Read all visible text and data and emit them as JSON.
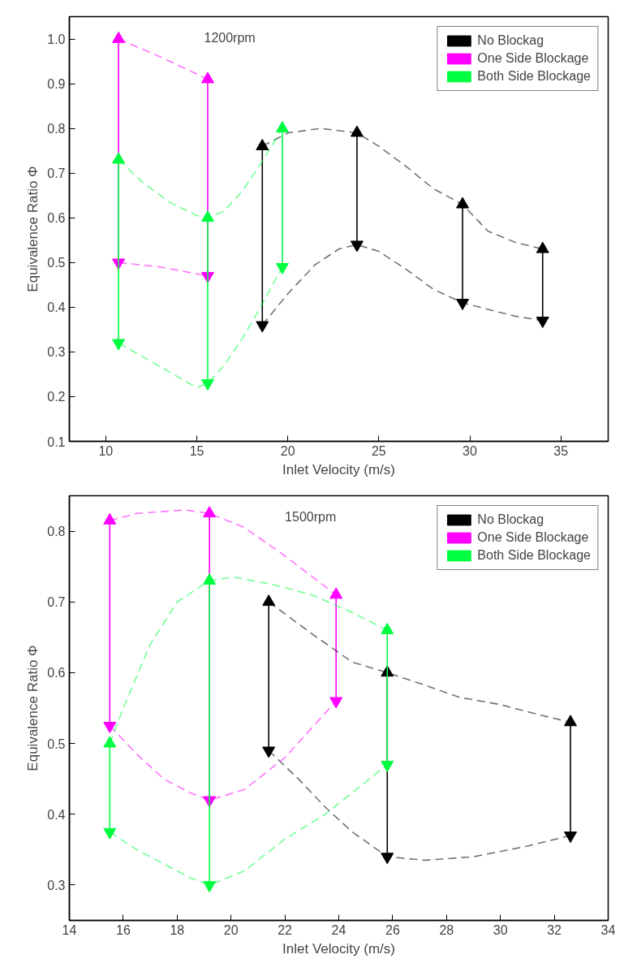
{
  "chart_data": [
    {
      "type": "line",
      "annotations": [
        "1200rpm"
      ],
      "xlabel": "Inlet Velocity (m/s)",
      "ylabel": "Equivalence Ratio Φ",
      "xlim": [
        8,
        37.6
      ],
      "ylim": [
        0.1,
        1.05
      ],
      "xticks": [
        10,
        15,
        20,
        25,
        30,
        35
      ],
      "yticks": [
        0.1,
        0.2,
        0.3,
        0.4,
        0.5,
        0.6,
        0.7,
        0.8,
        0.9,
        {
          "value": 1.0,
          "label": "1.0"
        }
      ],
      "legend": "top right",
      "grid": false,
      "marker": "none",
      "line_style": "dashed",
      "series": [
        {
          "color": "#000000",
          "x": [
            18.6,
            18.6
          ],
          "values": [
            0.36,
            0.76
          ],
          "marker": "triangle",
          "line_style": "solid"
        },
        {
          "color": "#000000",
          "x": [
            23.8,
            23.8
          ],
          "values": [
            0.54,
            0.79
          ],
          "marker": "triangle",
          "line_style": "solid"
        },
        {
          "color": "#000000",
          "x": [
            29.6,
            29.6
          ],
          "values": [
            0.41,
            0.63
          ],
          "marker": "triangle",
          "line_style": "solid"
        },
        {
          "color": "#000000",
          "x": [
            34.0,
            34.0
          ],
          "values": [
            0.37,
            0.53
          ],
          "marker": "triangle",
          "line_style": "solid"
        },
        {
          "color": "#ff00ff",
          "x": [
            10.7,
            10.7
          ],
          "values": [
            0.5,
            1.0
          ],
          "marker": "triangle",
          "line_style": "solid"
        },
        {
          "color": "#ff00ff",
          "x": [
            15.6,
            15.6
          ],
          "values": [
            0.47,
            0.91
          ],
          "marker": "triangle",
          "line_style": "solid"
        },
        {
          "color": "#00ff40",
          "x": [
            10.7,
            10.7
          ],
          "values": [
            0.32,
            0.73
          ],
          "marker": "triangle",
          "line_style": "solid"
        },
        {
          "color": "#00ff40",
          "x": [
            15.6,
            15.6
          ],
          "values": [
            0.23,
            0.6
          ],
          "marker": "triangle",
          "line_style": "solid"
        },
        {
          "color": "#00ff40",
          "x": [
            19.7,
            19.7
          ],
          "values": [
            0.49,
            0.8
          ],
          "marker": "triangle",
          "line_style": "solid"
        },
        {
          "name": "No Blockag",
          "color": "#000000",
          "x": [
            18.6,
            20,
            21.8,
            23.8,
            25,
            26.5,
            28,
            29.6,
            31,
            32.5,
            34.0
          ],
          "values": [
            0.76,
            0.79,
            0.8,
            0.79,
            0.76,
            0.715,
            0.665,
            0.63,
            0.57,
            0.545,
            0.53
          ]
        },
        {
          "color": "#000000",
          "x": [
            18.6,
            20,
            21.5,
            22.8,
            23.8,
            25,
            26.5,
            28,
            29.6,
            31,
            32.5,
            34.0
          ],
          "values": [
            0.36,
            0.43,
            0.495,
            0.53,
            0.54,
            0.525,
            0.485,
            0.44,
            0.41,
            0.395,
            0.38,
            0.37
          ]
        },
        {
          "name": "One Side Blockage",
          "color": "#ff00ff",
          "x": [
            10.7,
            13,
            15.6
          ],
          "values": [
            1.0,
            0.96,
            0.91
          ]
        },
        {
          "color": "#ff00ff",
          "x": [
            10.7,
            13,
            15.6
          ],
          "values": [
            0.5,
            0.49,
            0.47
          ]
        },
        {
          "name": "Both Side Blockage",
          "color": "#00ff40",
          "x": [
            10.7,
            12,
            13.5,
            15,
            15.6,
            16.5,
            17.5,
            18.5,
            19.7
          ],
          "values": [
            0.73,
            0.68,
            0.635,
            0.605,
            0.6,
            0.615,
            0.66,
            0.72,
            0.8
          ]
        },
        {
          "color": "#00ff40",
          "x": [
            10.7,
            12,
            13.5,
            15,
            15.6,
            16.5,
            17.5,
            18.5,
            19.7
          ],
          "values": [
            0.32,
            0.29,
            0.255,
            0.22,
            0.23,
            0.27,
            0.33,
            0.4,
            0.49
          ]
        }
      ]
    },
    {
      "type": "line",
      "annotations": [
        "1500rpm"
      ],
      "xlabel": "Inlet Velocity (m/s)",
      "ylabel": "Equivalence Ratio Φ",
      "xlim": [
        14,
        34
      ],
      "ylim": [
        0.25,
        0.85
      ],
      "xticks": [
        14,
        16,
        18,
        20,
        22,
        24,
        26,
        28,
        30,
        32,
        34
      ],
      "yticks": [
        0.3,
        0.4,
        0.5,
        0.6,
        0.7,
        0.8
      ],
      "legend": "top right",
      "grid": false,
      "marker": "none",
      "line_style": "dashed",
      "series": [
        {
          "color": "#000000",
          "x": [
            21.4,
            21.4
          ],
          "values": [
            0.49,
            0.7
          ],
          "marker": "triangle",
          "line_style": "solid"
        },
        {
          "color": "#000000",
          "x": [
            25.8,
            25.8
          ],
          "values": [
            0.34,
            0.6
          ],
          "marker": "triangle",
          "line_style": "solid"
        },
        {
          "color": "#000000",
          "x": [
            32.6,
            32.6
          ],
          "values": [
            0.37,
            0.53
          ],
          "marker": "triangle",
          "line_style": "solid"
        },
        {
          "color": "#ff00ff",
          "x": [
            15.5,
            15.5
          ],
          "values": [
            0.525,
            0.815
          ],
          "marker": "triangle",
          "line_style": "solid"
        },
        {
          "color": "#ff00ff",
          "x": [
            19.2,
            19.2
          ],
          "values": [
            0.42,
            0.825
          ],
          "marker": "triangle",
          "line_style": "solid"
        },
        {
          "color": "#ff00ff",
          "x": [
            23.9,
            23.9
          ],
          "values": [
            0.56,
            0.71
          ],
          "marker": "triangle",
          "line_style": "solid"
        },
        {
          "color": "#00ff40",
          "x": [
            15.5,
            15.5
          ],
          "values": [
            0.375,
            0.5
          ],
          "marker": "triangle",
          "line_style": "solid"
        },
        {
          "color": "#00ff40",
          "x": [
            19.2,
            19.2
          ],
          "values": [
            0.3,
            0.73
          ],
          "marker": "triangle",
          "line_style": "solid"
        },
        {
          "color": "#00ff40",
          "x": [
            25.8,
            25.8
          ],
          "values": [
            0.47,
            0.66
          ],
          "marker": "triangle",
          "line_style": "solid"
        },
        {
          "name": "No Blockag",
          "color": "#000000",
          "x": [
            21.4,
            23,
            24.5,
            25.8,
            27,
            28.5,
            30,
            31.5,
            32.6
          ],
          "values": [
            0.7,
            0.655,
            0.615,
            0.6,
            0.585,
            0.565,
            0.555,
            0.54,
            0.53
          ]
        },
        {
          "color": "#000000",
          "x": [
            21.4,
            22.5,
            23.5,
            24.5,
            25.8,
            27.2,
            29,
            31,
            32.6
          ],
          "values": [
            0.49,
            0.45,
            0.41,
            0.375,
            0.34,
            0.335,
            0.34,
            0.355,
            0.37
          ]
        },
        {
          "name": "One Side Blockage",
          "color": "#ff00ff",
          "x": [
            15.5,
            16.5,
            18.3,
            19.2,
            20.5,
            22,
            23.9
          ],
          "values": [
            0.815,
            0.825,
            0.83,
            0.825,
            0.805,
            0.765,
            0.71
          ]
        },
        {
          "color": "#ff00ff",
          "x": [
            15.5,
            16.5,
            17.5,
            18.5,
            19.2,
            20.5,
            22,
            23.9
          ],
          "values": [
            0.525,
            0.485,
            0.45,
            0.43,
            0.42,
            0.435,
            0.48,
            0.56
          ]
        },
        {
          "name": "Both Side Blockage",
          "color": "#00ff40",
          "x": [
            15.5,
            16,
            17,
            18,
            19.2,
            20.1,
            21.5,
            23,
            24.5,
            25.8
          ],
          "values": [
            0.5,
            0.55,
            0.64,
            0.7,
            0.73,
            0.735,
            0.725,
            0.71,
            0.685,
            0.66
          ]
        },
        {
          "color": "#00ff40",
          "x": [
            15.5,
            16.5,
            17.5,
            18.5,
            19.2,
            20.5,
            22,
            23.5,
            25.8
          ],
          "values": [
            0.375,
            0.35,
            0.33,
            0.31,
            0.3,
            0.32,
            0.365,
            0.4,
            0.47
          ]
        }
      ]
    }
  ]
}
